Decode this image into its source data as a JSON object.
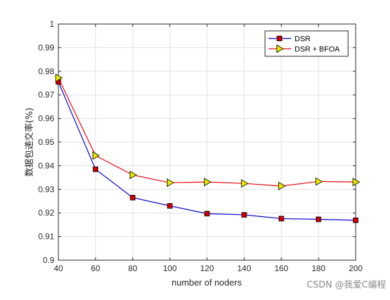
{
  "chart_data": {
    "type": "line",
    "title": "",
    "xlabel": "number of noders",
    "ylabel": "数据包递交率(%)",
    "x": [
      40,
      60,
      80,
      100,
      120,
      140,
      160,
      180,
      200
    ],
    "xlim": [
      40,
      200
    ],
    "ylim": [
      0.9,
      1.0
    ],
    "xticks": [
      "40",
      "60",
      "80",
      "100",
      "120",
      "140",
      "160",
      "180",
      "200"
    ],
    "yticks": [
      "0.9",
      "0.91",
      "0.92",
      "0.93",
      "0.94",
      "0.95",
      "0.96",
      "0.97",
      "0.98",
      "0.99",
      "1"
    ],
    "grid": true,
    "legend_position": "top-right",
    "series": [
      {
        "name": "DSR",
        "values": [
          0.9755,
          0.9385,
          0.9265,
          0.923,
          0.9197,
          0.9192,
          0.9176,
          0.9173,
          0.9169
        ],
        "line_color": "#0000cc",
        "marker": "square",
        "marker_color": "#cc0000"
      },
      {
        "name": "DSR + BFOA",
        "values": [
          0.9772,
          0.9443,
          0.9361,
          0.9328,
          0.9331,
          0.9325,
          0.9314,
          0.9333,
          0.9331
        ],
        "line_color": "#e8000b",
        "marker": "triangle-right",
        "marker_color": "#e6e600"
      }
    ]
  },
  "watermark": "CSDN @我爱C编程"
}
